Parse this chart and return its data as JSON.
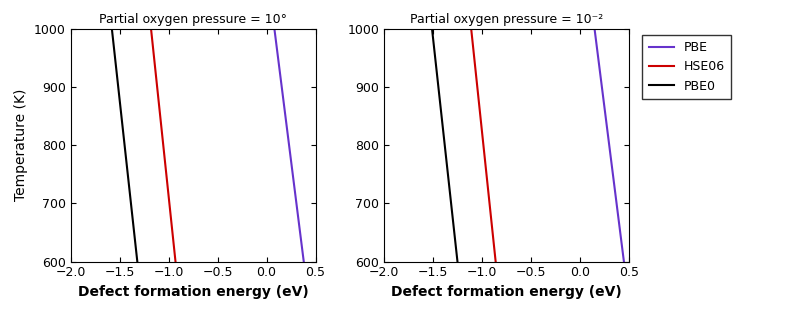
{
  "panels": [
    {
      "title": "Partial oxygen pressure = 10°",
      "lines": [
        {
          "label": "PBE0",
          "color": "#000000",
          "E_at_1000": -1.58,
          "E_at_600": -1.32
        },
        {
          "label": "HSE06",
          "color": "#cc0000",
          "E_at_1000": -1.18,
          "E_at_600": -0.93
        },
        {
          "label": "PBE",
          "color": "#6633cc",
          "E_at_1000": 0.08,
          "E_at_600": 0.38
        }
      ]
    },
    {
      "title": "Partial oxygen pressure = 10⁻²",
      "lines": [
        {
          "label": "PBE0",
          "color": "#000000",
          "E_at_1000": -1.51,
          "E_at_600": -1.25
        },
        {
          "label": "HSE06",
          "color": "#cc0000",
          "E_at_1000": -1.11,
          "E_at_600": -0.86
        },
        {
          "label": "PBE",
          "color": "#6633cc",
          "E_at_1000": 0.15,
          "E_at_600": 0.45
        }
      ]
    }
  ],
  "xlim": [
    -2.0,
    0.5
  ],
  "ylim": [
    600,
    1000
  ],
  "xticks": [
    -2.0,
    -1.5,
    -1.0,
    -0.5,
    0.0,
    0.5
  ],
  "yticks": [
    600,
    700,
    800,
    900,
    1000
  ],
  "xlabel": "Defect formation energy (eV)",
  "ylabel": "Temperature (K)",
  "legend_labels": [
    "PBE",
    "HSE06",
    "PBE0"
  ],
  "legend_colors": [
    "#6633cc",
    "#cc0000",
    "#000000"
  ],
  "background_color": "#ffffff",
  "linewidth": 1.5,
  "title_fontsize": 9,
  "label_fontsize": 10,
  "tick_fontsize": 9
}
